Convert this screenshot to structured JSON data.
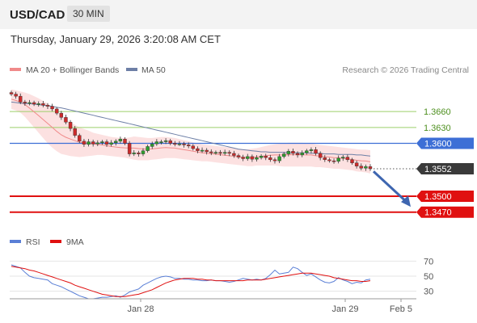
{
  "header": {
    "symbol": "USD/CAD",
    "timeframe": "30 MIN"
  },
  "datetime": "Thursday, January 29, 2026 3:20:08 AM CET",
  "legend": {
    "bb_label": "MA 20 + Bollinger Bands",
    "ma50_label": "MA 50",
    "rsi_label": "RSI",
    "ma9_label": "9MA",
    "credit": "Research © 2026 Trading Central"
  },
  "colors": {
    "bullish": "#2e9e2e",
    "bearish": "#cc2b2b",
    "band_fill": "#fbd9d9",
    "ma20": "#f08a8a",
    "ma50": "#6d7fa6",
    "resistance": "#9ccf6a",
    "pivot": "#3d6fd6",
    "support": "#e01010",
    "last_price": "#3a3a3a",
    "rsi": "#5a7fd6",
    "rsi_ma": "#e01010"
  },
  "chart_data": [
    {
      "type": "candlestick",
      "title": "",
      "x_labels": [
        "Jan 28",
        "Jan 29",
        "Feb 5"
      ],
      "ylim": [
        1.3436,
        1.3706
      ],
      "last_price": 1.3552,
      "levels": [
        {
          "label": "1.3660",
          "value": 1.366,
          "kind": "resistance"
        },
        {
          "label": "1.3630",
          "value": 1.363,
          "kind": "resistance"
        },
        {
          "label": "1.3600",
          "value": 1.36,
          "kind": "pivot"
        },
        {
          "label": "1.3552",
          "value": 1.3552,
          "kind": "last"
        },
        {
          "label": "1.3500",
          "value": 1.35,
          "kind": "support"
        },
        {
          "label": "1.3470",
          "value": 1.347,
          "kind": "support"
        }
      ],
      "forecast": {
        "from": 1.355,
        "to": 1.3477
      },
      "closes": [
        1.3693,
        1.3689,
        1.3678,
        1.3676,
        1.3677,
        1.3674,
        1.3675,
        1.3672,
        1.367,
        1.3665,
        1.3657,
        1.3649,
        1.364,
        1.3628,
        1.3615,
        1.3604,
        1.3598,
        1.3603,
        1.3599,
        1.3601,
        1.3603,
        1.3598,
        1.3601,
        1.3604,
        1.3608,
        1.36,
        1.358,
        1.3582,
        1.358,
        1.3586,
        1.3594,
        1.3599,
        1.3603,
        1.3603,
        1.3605,
        1.36,
        1.3599,
        1.3599,
        1.3597,
        1.3595,
        1.359,
        1.3586,
        1.3587,
        1.3584,
        1.3582,
        1.3583,
        1.3581,
        1.3583,
        1.3581,
        1.3577,
        1.3574,
        1.3571,
        1.3575,
        1.357,
        1.3573,
        1.3576,
        1.3573,
        1.3569,
        1.3567,
        1.3575,
        1.358,
        1.3585,
        1.3581,
        1.3578,
        1.3582,
        1.3586,
        1.3588,
        1.3581,
        1.3573,
        1.3569,
        1.3567,
        1.3566,
        1.3572,
        1.3574,
        1.3569,
        1.3563,
        1.3557,
        1.3553,
        1.3556,
        1.3552
      ],
      "bb_upper": [
        1.3702,
        1.37,
        1.3698,
        1.3696,
        1.3693,
        1.3689,
        1.3685,
        1.368,
        1.3675,
        1.3668,
        1.366,
        1.3652,
        1.3645,
        1.364,
        1.3635,
        1.363,
        1.3627,
        1.3624,
        1.362,
        1.3618,
        1.3616,
        1.3614,
        1.3612,
        1.3611,
        1.361,
        1.361,
        1.3611,
        1.3613,
        1.3612,
        1.3611,
        1.361,
        1.361,
        1.3611,
        1.3612,
        1.3612,
        1.3611,
        1.361,
        1.3608,
        1.3606,
        1.3604,
        1.3602,
        1.36,
        1.3598,
        1.3597,
        1.3596,
        1.3595,
        1.3594,
        1.3593,
        1.3592,
        1.3591,
        1.359,
        1.3589,
        1.3589,
        1.359,
        1.3591,
        1.3593,
        1.3595,
        1.3597,
        1.3598,
        1.3599,
        1.36,
        1.3601,
        1.3601,
        1.3601,
        1.3601,
        1.36,
        1.36,
        1.3598,
        1.3597,
        1.3596,
        1.3595,
        1.3594,
        1.3593,
        1.3592,
        1.3591,
        1.359,
        1.3589,
        1.3588,
        1.3588,
        1.3587
      ],
      "bb_lower": [
        1.3665,
        1.3662,
        1.3658,
        1.365,
        1.364,
        1.363,
        1.362,
        1.361,
        1.36,
        1.3592,
        1.3585,
        1.358,
        1.3578,
        1.3576,
        1.3575,
        1.3574,
        1.3575,
        1.3576,
        1.3577,
        1.3578,
        1.3578,
        1.3577,
        1.3576,
        1.3575,
        1.3574,
        1.3573,
        1.3571,
        1.3569,
        1.3568,
        1.3568,
        1.3568,
        1.3569,
        1.357,
        1.3571,
        1.3572,
        1.3572,
        1.3572,
        1.3571,
        1.357,
        1.3569,
        1.3568,
        1.3567,
        1.3566,
        1.3566,
        1.3565,
        1.3564,
        1.3563,
        1.3562,
        1.3561,
        1.356,
        1.3559,
        1.3558,
        1.3557,
        1.3557,
        1.3558,
        1.3558,
        1.3558,
        1.3558,
        1.3558,
        1.3557,
        1.3556,
        1.3556,
        1.3556,
        1.3556,
        1.3556,
        1.3556,
        1.3556,
        1.3555,
        1.3555,
        1.3554,
        1.3553,
        1.3552,
        1.3552,
        1.3551,
        1.355,
        1.3549,
        1.3547,
        1.3546,
        1.3545,
        1.3543
      ],
      "ma50": [
        1.3678,
        1.3677,
        1.3676,
        1.3675,
        1.3675,
        1.3674,
        1.3673,
        1.3672,
        1.3671,
        1.367,
        1.3668,
        1.3667,
        1.3665,
        1.3663,
        1.3661,
        1.3659,
        1.3657,
        1.3655,
        1.3653,
        1.3651,
        1.3649,
        1.3647,
        1.3645,
        1.3643,
        1.3641,
        1.3639,
        1.3637,
        1.3635,
        1.3633,
        1.3631,
        1.3629,
        1.3627,
        1.3625,
        1.3623,
        1.3621,
        1.3619,
        1.3617,
        1.3615,
        1.3613,
        1.3611,
        1.3609,
        1.3607,
        1.3605,
        1.3603,
        1.3601,
        1.3599,
        1.3597,
        1.3595,
        1.3593,
        1.3591,
        1.3589,
        1.3588,
        1.3587,
        1.3586,
        1.3585,
        1.3584,
        1.3584,
        1.3583,
        1.3583,
        1.3583,
        1.3583,
        1.3582,
        1.3582,
        1.3582,
        1.3582,
        1.3582,
        1.3581,
        1.3581,
        1.3581,
        1.358,
        1.358,
        1.358,
        1.3579,
        1.3579,
        1.3579,
        1.3579,
        1.3578,
        1.3578,
        1.3577,
        1.3576
      ]
    },
    {
      "type": "line",
      "title": "",
      "ylim": [
        20,
        80
      ],
      "ticks": [
        {
          "label": "70",
          "value": 70
        },
        {
          "label": "50",
          "value": 50
        },
        {
          "label": "30",
          "value": 30
        }
      ],
      "series": [
        {
          "name": "RSI",
          "values": [
            65,
            63,
            61,
            55,
            50,
            48,
            47,
            46,
            45,
            40,
            38,
            36,
            33,
            30,
            27,
            24,
            22,
            20,
            20,
            21,
            22,
            22,
            23,
            24,
            22,
            25,
            29,
            31,
            33,
            38,
            41,
            44,
            47,
            49,
            50,
            49,
            47,
            47,
            46,
            46,
            45,
            45,
            44,
            44,
            45,
            44,
            44,
            43,
            42,
            43,
            45,
            47,
            46,
            45,
            46,
            45,
            47,
            52,
            58,
            53,
            54,
            55,
            62,
            60,
            55,
            51,
            53,
            49,
            45,
            42,
            41,
            43,
            48,
            45,
            43,
            40,
            42,
            41,
            45,
            46
          ]
        },
        {
          "name": "9MA",
          "values": [
            63,
            62,
            61,
            60,
            58,
            57,
            55,
            53,
            51,
            49,
            47,
            45,
            43,
            41,
            38,
            36,
            34,
            32,
            30,
            28,
            26,
            25,
            24,
            23,
            23,
            23,
            24,
            25,
            26,
            28,
            30,
            32,
            35,
            38,
            41,
            43,
            45,
            46,
            47,
            47,
            47,
            46,
            46,
            45,
            45,
            44,
            44,
            44,
            44,
            44,
            44,
            44,
            45,
            45,
            45,
            45,
            46,
            47,
            48,
            49,
            50,
            51,
            52,
            53,
            54,
            54,
            54,
            53,
            52,
            51,
            50,
            48,
            47,
            46,
            45,
            44,
            44,
            43,
            43,
            44
          ]
        }
      ]
    }
  ]
}
